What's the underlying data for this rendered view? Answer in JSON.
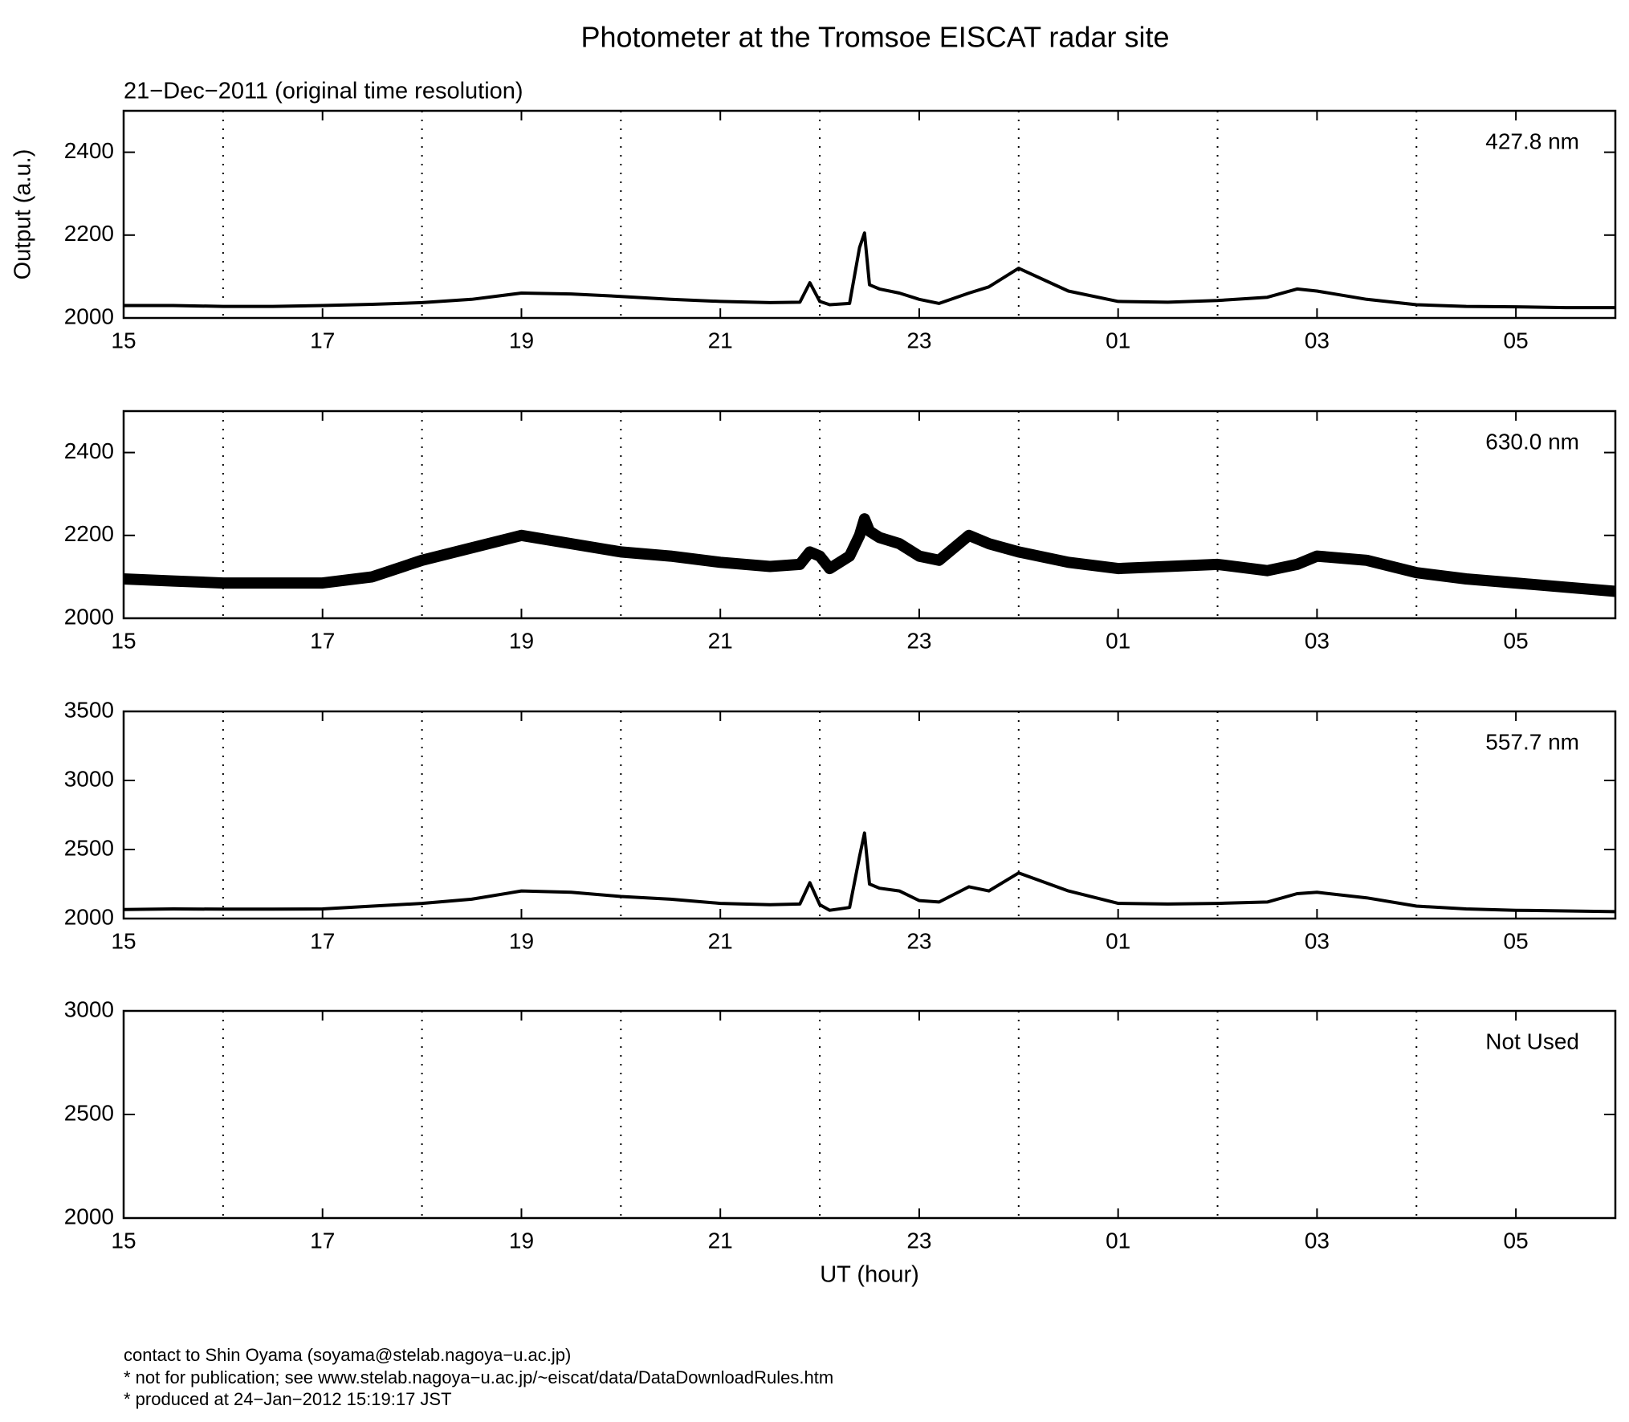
{
  "title": "Photometer at the Tromsoe EISCAT radar site",
  "subtitle": "21−Dec−2011 (original time resolution)",
  "ylabel": "Output (a.u.)",
  "xlabel": "UT (hour)",
  "footer": [
    "contact to Shin Oyama (soyama@stelab.nagoya−u.ac.jp)",
    "* not for publication; see www.stelab.nagoya−u.ac.jp/~eiscat/data/DataDownloadRules.htm",
    "* produced at 24−Jan−2012 15:19:17 JST"
  ],
  "chart_data": [
    {
      "type": "line",
      "label": "427.8 nm",
      "color": "#000000",
      "xlim": [
        15,
        30
      ],
      "xticks": [
        15,
        17,
        19,
        21,
        23,
        {
          "value": 25,
          "label": "01"
        },
        {
          "value": 27,
          "label": "03"
        },
        {
          "value": 29,
          "label": "05"
        }
      ],
      "minor_xticks": [
        16,
        18,
        20,
        22,
        24,
        26,
        28
      ],
      "grid": true,
      "ylim": [
        2000,
        2500
      ],
      "yticks": [
        2000,
        2200,
        2400
      ],
      "x": [
        15,
        15.5,
        16,
        16.5,
        17,
        17.5,
        18,
        18.5,
        19,
        19.5,
        20,
        20.5,
        21,
        21.5,
        21.8,
        21.9,
        22,
        22.1,
        22.3,
        22.4,
        22.45,
        22.5,
        22.6,
        22.8,
        23,
        23.2,
        23.5,
        23.7,
        24,
        24.5,
        25,
        25.5,
        26,
        26.5,
        26.8,
        27,
        27.5,
        28,
        28.5,
        29,
        29.5,
        30
      ],
      "values": [
        2030,
        2030,
        2028,
        2028,
        2030,
        2033,
        2037,
        2045,
        2060,
        2058,
        2052,
        2045,
        2040,
        2037,
        2038,
        2085,
        2040,
        2032,
        2035,
        2170,
        2205,
        2080,
        2070,
        2060,
        2045,
        2035,
        2060,
        2075,
        2120,
        2065,
        2040,
        2038,
        2042,
        2050,
        2070,
        2065,
        2045,
        2032,
        2028,
        2027,
        2025,
        2025
      ]
    },
    {
      "type": "line",
      "label": "630.0 nm",
      "color": "#000000",
      "xlim": [
        15,
        30
      ],
      "xticks": [
        15,
        17,
        19,
        21,
        23,
        {
          "value": 25,
          "label": "01"
        },
        {
          "value": 27,
          "label": "03"
        },
        {
          "value": 29,
          "label": "05"
        }
      ],
      "minor_xticks": [
        16,
        18,
        20,
        22,
        24,
        26,
        28
      ],
      "grid": true,
      "ylim": [
        2000,
        2500
      ],
      "yticks": [
        2000,
        2200,
        2400
      ],
      "x": [
        15,
        15.5,
        16,
        16.5,
        17,
        17.5,
        18,
        18.5,
        19,
        19.5,
        20,
        20.5,
        21,
        21.5,
        21.8,
        21.9,
        22,
        22.1,
        22.3,
        22.4,
        22.45,
        22.5,
        22.6,
        22.8,
        23,
        23.2,
        23.5,
        23.7,
        24,
        24.5,
        25,
        25.5,
        26,
        26.5,
        26.8,
        27,
        27.5,
        28,
        28.5,
        29,
        29.5,
        30
      ],
      "values": [
        2095,
        2090,
        2085,
        2085,
        2085,
        2100,
        2140,
        2170,
        2200,
        2180,
        2160,
        2150,
        2135,
        2125,
        2130,
        2160,
        2150,
        2120,
        2150,
        2200,
        2240,
        2210,
        2195,
        2180,
        2150,
        2140,
        2200,
        2180,
        2160,
        2135,
        2120,
        2125,
        2130,
        2115,
        2130,
        2150,
        2140,
        2110,
        2095,
        2085,
        2075,
        2065
      ]
    },
    {
      "type": "line",
      "label": "557.7 nm",
      "color": "#000000",
      "xlim": [
        15,
        30
      ],
      "xticks": [
        15,
        17,
        19,
        21,
        23,
        {
          "value": 25,
          "label": "01"
        },
        {
          "value": 27,
          "label": "03"
        },
        {
          "value": 29,
          "label": "05"
        }
      ],
      "minor_xticks": [
        16,
        18,
        20,
        22,
        24,
        26,
        28
      ],
      "grid": true,
      "ylim": [
        2000,
        3500
      ],
      "yticks": [
        2000,
        2500,
        3000,
        3500
      ],
      "x": [
        15,
        15.5,
        16,
        16.5,
        17,
        17.5,
        18,
        18.5,
        19,
        19.5,
        20,
        20.5,
        21,
        21.5,
        21.8,
        21.9,
        22,
        22.1,
        22.3,
        22.4,
        22.45,
        22.5,
        22.6,
        22.8,
        23,
        23.2,
        23.5,
        23.7,
        24,
        24.5,
        25,
        25.5,
        26,
        26.5,
        26.8,
        27,
        27.5,
        28,
        28.5,
        29,
        29.5,
        30
      ],
      "values": [
        2065,
        2070,
        2068,
        2068,
        2070,
        2090,
        2110,
        2140,
        2200,
        2190,
        2160,
        2140,
        2110,
        2100,
        2105,
        2260,
        2100,
        2060,
        2080,
        2450,
        2620,
        2250,
        2220,
        2200,
        2130,
        2120,
        2230,
        2200,
        2330,
        2200,
        2110,
        2105,
        2110,
        2120,
        2180,
        2190,
        2150,
        2090,
        2070,
        2060,
        2055,
        2050
      ]
    },
    {
      "type": "empty",
      "label": "Not Used",
      "xlim": [
        15,
        30
      ],
      "xticks": [
        15,
        17,
        19,
        21,
        23,
        {
          "value": 25,
          "label": "01"
        },
        {
          "value": 27,
          "label": "03"
        },
        {
          "value": 29,
          "label": "05"
        }
      ],
      "minor_xticks": [
        16,
        18,
        20,
        22,
        24,
        26,
        28
      ],
      "grid": true,
      "ylim": [
        2000,
        3000
      ],
      "yticks": [
        2000,
        2500,
        3000
      ]
    }
  ]
}
